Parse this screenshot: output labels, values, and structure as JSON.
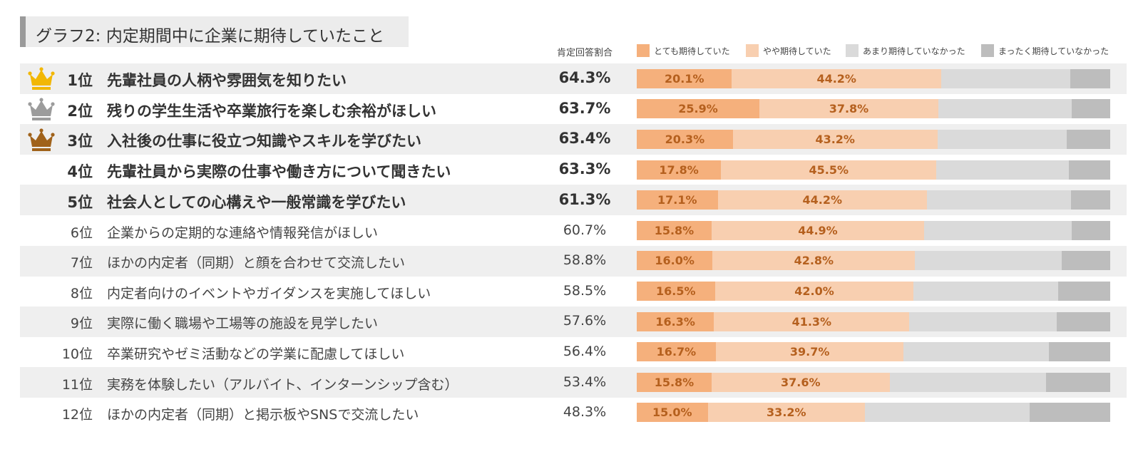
{
  "title": "グラフ2: 内定期間中に企業に期待していたこと",
  "header": {
    "rate_label": "肯定回答割合"
  },
  "colors": {
    "very": "#f5b07c",
    "somewhat": "#f8cfb0",
    "not_much": "#dadada",
    "not_at_all": "#bdbdbd",
    "band": "#efefef",
    "gold": "#f2b705",
    "silver": "#9c9c9c",
    "bronze": "#a0621a",
    "label": "#b5601e"
  },
  "chart_data": {
    "type": "bar",
    "stacked": true,
    "orientation": "horizontal",
    "title": "グラフ2: 内定期間中に企業に期待していたこと",
    "xlim": [
      0,
      100
    ],
    "rate_header": "肯定回答割合",
    "legend_position": "top-right",
    "legend": [
      "とても期待していた",
      "やや期待していた",
      "あまり期待していなかった",
      "まったく期待していなかった"
    ],
    "rows": [
      {
        "rank": "1位",
        "label": "先輩社員の人柄や雰囲気を知りたい",
        "rate": "64.3%",
        "crown": "gold",
        "bold": true,
        "shaded": true,
        "values": [
          20.1,
          44.2,
          27.3,
          8.4
        ],
        "labels": [
          "20.1%",
          "44.2%"
        ]
      },
      {
        "rank": "2位",
        "label": "残りの学生生活や卒業旅行を楽しむ余裕がほしい",
        "rate": "63.7%",
        "crown": "silver",
        "bold": true,
        "shaded": false,
        "values": [
          25.9,
          37.8,
          28.2,
          8.1
        ],
        "labels": [
          "25.9%",
          "37.8%"
        ]
      },
      {
        "rank": "3位",
        "label": "入社後の仕事に役立つ知識やスキルを学びたい",
        "rate": "63.4%",
        "crown": "bronze",
        "bold": true,
        "shaded": true,
        "values": [
          20.3,
          43.2,
          27.3,
          9.2
        ],
        "labels": [
          "20.3%",
          "43.2%"
        ]
      },
      {
        "rank": "4位",
        "label": "先輩社員から実際の仕事や働き方について聞きたい",
        "rate": "63.3%",
        "crown": "",
        "bold": true,
        "shaded": false,
        "values": [
          17.8,
          45.5,
          28.0,
          8.7
        ],
        "labels": [
          "17.8%",
          "45.5%"
        ]
      },
      {
        "rank": "5位",
        "label": "社会人としての心構えや一般常識を学びたい",
        "rate": "61.3%",
        "crown": "",
        "bold": true,
        "shaded": true,
        "values": [
          17.1,
          44.2,
          30.4,
          8.3
        ],
        "labels": [
          "17.1%",
          "44.2%"
        ]
      },
      {
        "rank": "6位",
        "label": "企業からの定期的な連絡や情報発信がほしい",
        "rate": "60.7%",
        "crown": "",
        "bold": false,
        "shaded": false,
        "values": [
          15.8,
          44.9,
          31.1,
          8.2
        ],
        "labels": [
          "15.8%",
          "44.9%"
        ]
      },
      {
        "rank": "7位",
        "label": "ほかの内定者（同期）と顔を合わせて交流したい",
        "rate": "58.8%",
        "crown": "",
        "bold": false,
        "shaded": true,
        "values": [
          16.0,
          42.8,
          30.9,
          10.3
        ],
        "labels": [
          "16.0%",
          "42.8%"
        ]
      },
      {
        "rank": "8位",
        "label": "内定者向けのイベントやガイダンスを実施してほしい",
        "rate": "58.5%",
        "crown": "",
        "bold": false,
        "shaded": false,
        "values": [
          16.5,
          42.0,
          30.5,
          11.0
        ],
        "labels": [
          "16.5%",
          "42.0%"
        ]
      },
      {
        "rank": "9位",
        "label": "実際に働く職場や工場等の施設を見学したい",
        "rate": "57.6%",
        "crown": "",
        "bold": false,
        "shaded": true,
        "values": [
          16.3,
          41.3,
          31.1,
          11.3
        ],
        "labels": [
          "16.3%",
          "41.3%"
        ]
      },
      {
        "rank": "10位",
        "label": "卒業研究やゼミ活動などの学業に配慮してほしい",
        "rate": "56.4%",
        "crown": "",
        "bold": false,
        "shaded": false,
        "values": [
          16.7,
          39.7,
          30.7,
          12.9
        ],
        "labels": [
          "16.7%",
          "39.7%"
        ]
      },
      {
        "rank": "11位",
        "label": "実務を体験したい（アルバイト、インターンシップ含む）",
        "rate": "53.4%",
        "crown": "",
        "bold": false,
        "shaded": true,
        "values": [
          15.8,
          37.6,
          33.0,
          13.6
        ],
        "labels": [
          "15.8%",
          "37.6%"
        ]
      },
      {
        "rank": "12位",
        "label": "ほかの内定者（同期）と掲示板やSNSで交流したい",
        "rate": "48.3%",
        "crown": "",
        "bold": false,
        "shaded": false,
        "values": [
          15.0,
          33.2,
          34.8,
          17.0
        ],
        "labels": [
          "15.0%",
          "33.2%"
        ]
      }
    ]
  }
}
